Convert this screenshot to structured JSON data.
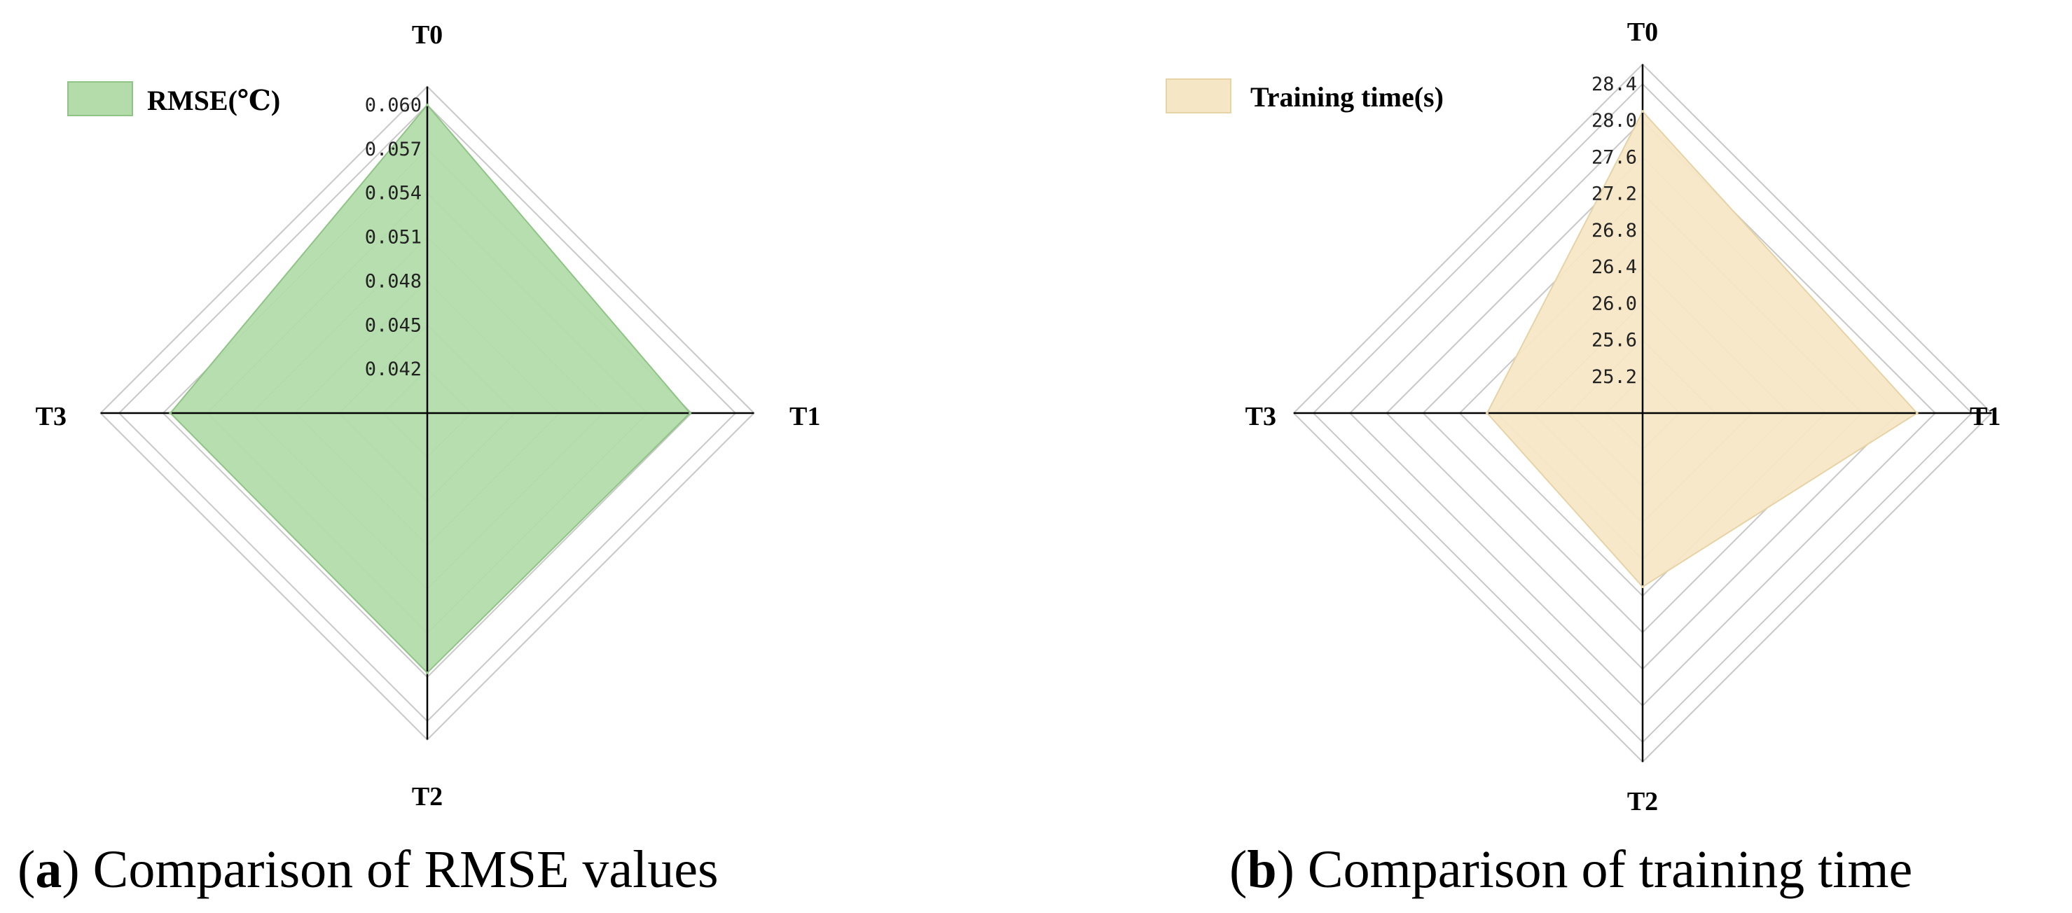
{
  "chart_data": [
    {
      "type": "radar",
      "axes": [
        "T0",
        "T1",
        "T2",
        "T3"
      ],
      "series": [
        {
          "name": "RMSE(℃)",
          "values": [
            0.06,
            0.0569,
            0.0567,
            0.0565
          ]
        }
      ],
      "range": [
        0.039,
        0.06
      ],
      "ticks": [
        "0.042",
        "0.045",
        "0.048",
        "0.051",
        "0.054",
        "0.057",
        "0.060"
      ],
      "tick_values": [
        0.042,
        0.045,
        0.048,
        0.051,
        0.054,
        0.057,
        0.06
      ],
      "fill_color": "#b3dcaa",
      "stroke_color": "#8fc486",
      "legend": "top-left",
      "caption_letter": "a",
      "caption_text": "Comparison of RMSE values"
    },
    {
      "type": "radar",
      "axes": [
        "T0",
        "T1",
        "T2",
        "T3"
      ],
      "series": [
        {
          "name": "Training time(s)",
          "values": [
            28.1,
            27.8,
            26.7,
            26.5
          ]
        }
      ],
      "range": [
        24.8,
        28.4
      ],
      "ticks": [
        "25.2",
        "25.6",
        "26.0",
        "26.4",
        "26.8",
        "27.2",
        "27.6",
        "28.0",
        "28.4"
      ],
      "tick_values": [
        25.2,
        25.6,
        26.0,
        26.4,
        26.8,
        27.2,
        27.6,
        28.0,
        28.4
      ],
      "fill_color": "#f5e7c6",
      "stroke_color": "#e6d3a6",
      "legend": "top-left",
      "caption_letter": "b",
      "caption_text": "Comparison of training time"
    }
  ]
}
